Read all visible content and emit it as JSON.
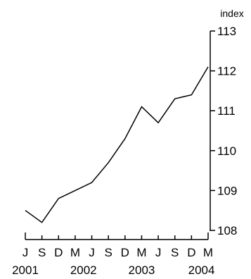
{
  "chart_data": {
    "type": "line",
    "title": "",
    "xlabel": "",
    "ylabel": "index",
    "ylim": [
      108,
      113
    ],
    "yticks": [
      108,
      109,
      110,
      111,
      112,
      113
    ],
    "yaxis_position": "right",
    "grid": false,
    "legend": "none",
    "line_color": "#000000",
    "x_tick_labels": [
      "J",
      "S",
      "D",
      "M",
      "J",
      "S",
      "D",
      "M",
      "J",
      "S",
      "D",
      "M"
    ],
    "x_year_labels": [
      "2001",
      "2002",
      "2003",
      "2004"
    ],
    "x": [
      "Jun 2001",
      "Sep 2001",
      "Dec 2001",
      "Mar 2002",
      "Jun 2002",
      "Sep 2002",
      "Dec 2002",
      "Mar 2003",
      "Jun 2003",
      "Sep 2003",
      "Dec 2003",
      "Mar 2004"
    ],
    "series": [
      {
        "values": [
          108.5,
          108.2,
          108.8,
          109.0,
          109.2,
          109.7,
          110.3,
          111.1,
          110.7,
          111.3,
          111.4,
          112.1
        ]
      }
    ]
  }
}
